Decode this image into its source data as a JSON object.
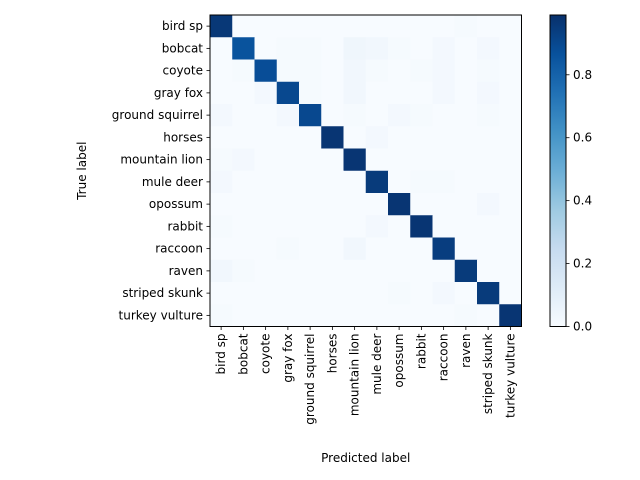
{
  "chart_data": {
    "type": "heatmap",
    "xlabel": "Predicted label",
    "ylabel": "True label",
    "categories": [
      "bird sp",
      "bobcat",
      "coyote",
      "gray fox",
      "ground squirrel",
      "horses",
      "mountain lion",
      "mule deer",
      "opossum",
      "rabbit",
      "raccoon",
      "raven",
      "striped skunk",
      "turkey vulture"
    ],
    "matrix": [
      [
        0.96,
        0.0,
        0.0,
        0.0,
        0.0,
        0.0,
        0.0,
        0.0,
        0.0,
        0.0,
        0.0,
        0.01,
        0.0,
        0.0
      ],
      [
        0.0,
        0.86,
        0.0,
        0.01,
        0.01,
        0.0,
        0.04,
        0.03,
        0.01,
        0.0,
        0.02,
        0.0,
        0.02,
        0.0
      ],
      [
        0.0,
        0.01,
        0.88,
        0.01,
        0.01,
        0.0,
        0.03,
        0.01,
        0.0,
        0.01,
        0.02,
        0.0,
        0.01,
        0.0
      ],
      [
        0.0,
        0.0,
        0.02,
        0.9,
        0.01,
        0.0,
        0.03,
        0.0,
        0.0,
        0.0,
        0.02,
        0.0,
        0.02,
        0.0
      ],
      [
        0.02,
        0.0,
        0.0,
        0.02,
        0.9,
        0.0,
        0.01,
        0.0,
        0.02,
        0.01,
        0.0,
        0.0,
        0.01,
        0.0
      ],
      [
        0.0,
        0.0,
        0.0,
        0.0,
        0.0,
        0.97,
        0.0,
        0.02,
        0.0,
        0.0,
        0.0,
        0.0,
        0.0,
        0.0
      ],
      [
        0.01,
        0.02,
        0.0,
        0.0,
        0.0,
        0.0,
        0.97,
        0.0,
        0.0,
        0.0,
        0.0,
        0.0,
        0.0,
        0.0
      ],
      [
        0.02,
        0.0,
        0.0,
        0.0,
        0.0,
        0.0,
        0.0,
        0.95,
        0.0,
        0.01,
        0.01,
        0.0,
        0.0,
        0.0
      ],
      [
        0.0,
        0.0,
        0.0,
        0.0,
        0.0,
        0.0,
        0.0,
        0.0,
        0.97,
        0.0,
        0.0,
        0.0,
        0.02,
        0.0
      ],
      [
        0.01,
        0.0,
        0.0,
        0.0,
        0.0,
        0.0,
        0.0,
        0.02,
        0.0,
        0.97,
        0.0,
        0.0,
        0.0,
        0.0
      ],
      [
        0.0,
        0.0,
        0.0,
        0.01,
        0.0,
        0.0,
        0.03,
        0.0,
        0.0,
        0.0,
        0.94,
        0.0,
        0.0,
        0.0
      ],
      [
        0.03,
        0.01,
        0.0,
        0.0,
        0.0,
        0.0,
        0.0,
        0.0,
        0.0,
        0.0,
        0.0,
        0.95,
        0.0,
        0.0
      ],
      [
        0.0,
        0.0,
        0.0,
        0.0,
        0.0,
        0.0,
        0.0,
        0.0,
        0.01,
        0.0,
        0.02,
        0.0,
        0.95,
        0.0
      ],
      [
        0.01,
        0.0,
        0.0,
        0.0,
        0.0,
        0.0,
        0.0,
        0.0,
        0.0,
        0.0,
        0.0,
        0.01,
        0.0,
        0.97
      ]
    ],
    "colorbar": {
      "ticks": [
        0.0,
        0.2,
        0.4,
        0.6,
        0.8
      ],
      "tick_labels": [
        "0.0",
        "0.2",
        "0.4",
        "0.6",
        "0.8"
      ],
      "range": [
        0.0,
        0.99
      ],
      "colormap": "Blues",
      "colors": [
        "#f7fbff",
        "#deebf7",
        "#c6dbef",
        "#9ecae1",
        "#6baed6",
        "#4292c6",
        "#2171b5",
        "#08519c",
        "#08306b"
      ]
    }
  }
}
